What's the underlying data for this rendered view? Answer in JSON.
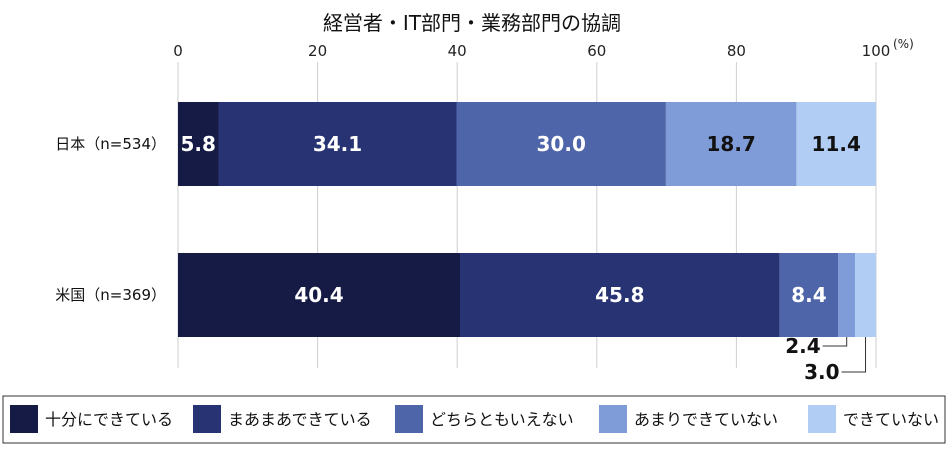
{
  "chart_data": {
    "type": "bar",
    "orientation": "horizontal",
    "stacked": true,
    "title": "経営者・IT部門・業務部門の協調",
    "unit_label": "(%)",
    "xlim": [
      0,
      100
    ],
    "x_ticks": [
      0,
      20,
      40,
      60,
      80,
      100
    ],
    "grid": "vertical",
    "legend_position": "bottom",
    "categories": [
      "日本（n=534）",
      "米国（n=369）"
    ],
    "series": [
      {
        "name": "十分にできている",
        "color": "#151b45",
        "values": [
          5.8,
          40.4
        ],
        "labels": [
          "5.8",
          "40.4"
        ],
        "label_color": "#ffffff"
      },
      {
        "name": "まあまあできている",
        "color": "#283373",
        "values": [
          34.1,
          45.8
        ],
        "labels": [
          "34.1",
          "45.8"
        ],
        "label_color": "#ffffff"
      },
      {
        "name": "どちらともいえない",
        "color": "#4f65a9",
        "values": [
          30.0,
          8.4
        ],
        "labels": [
          "30.0",
          "8.4"
        ],
        "label_color": "#ffffff"
      },
      {
        "name": "あまりできていない",
        "color": "#7f9cd8",
        "values": [
          18.7,
          2.4
        ],
        "labels": [
          "18.7",
          "2.4"
        ],
        "label_color": "#111111"
      },
      {
        "name": "できていない",
        "color": "#b2cdf4",
        "values": [
          11.4,
          3.0
        ],
        "labels": [
          "11.4",
          "3.0"
        ],
        "label_color": "#111111"
      }
    ]
  }
}
